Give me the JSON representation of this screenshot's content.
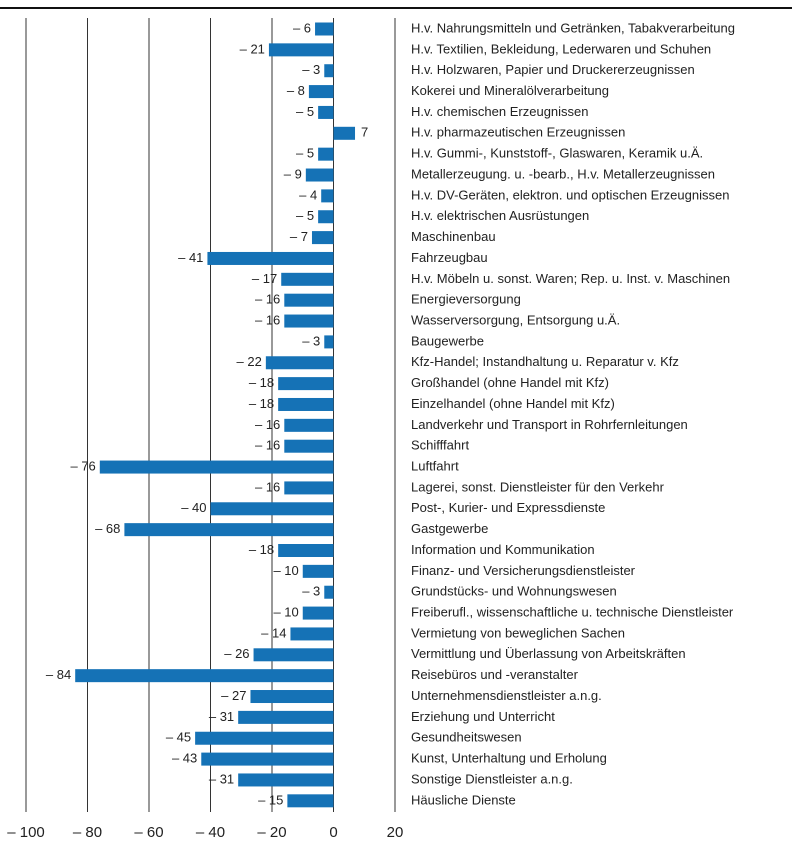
{
  "chart_data": {
    "type": "hbar",
    "categories": [
      "H.v. Nahrungsmitteln und Getränken, Tabakverarbeitung",
      "H.v. Textilien, Bekleidung, Lederwaren und Schuhen",
      "H.v. Holzwaren, Papier und Druckererzeugnissen",
      "Kokerei und Mineralölverarbeitung",
      "H.v. chemischen Erzeugnissen",
      "H.v. pharmazeutischen Erzeugnissen",
      "H.v. Gummi-, Kunststoff-, Glaswaren, Keramik u.Ä.",
      "Metallerzeugung. u. -bearb., H.v. Metallerzeugnissen",
      "H.v. DV-Geräten, elektron. und optischen Erzeugnissen",
      "H.v. elektrischen Ausrüstungen",
      "Maschinenbau",
      "Fahrzeugbau",
      "H.v. Möbeln u. sonst. Waren; Rep. u. Inst. v. Maschinen",
      "Energieversorgung",
      "Wasserversorgung, Entsorgung u.Ä.",
      "Baugewerbe",
      "Kfz-Handel; Instandhaltung u. Reparatur v. Kfz",
      "Großhandel (ohne Handel mit Kfz)",
      "Einzelhandel (ohne Handel mit Kfz)",
      "Landverkehr und Transport in Rohrfernleitungen",
      "Schifffahrt",
      "Luftfahrt",
      "Lagerei, sonst. Dienstleister für den Verkehr",
      "Post-, Kurier- und Expressdienste",
      "Gastgewerbe",
      "Information und Kommunikation",
      "Finanz- und Versicherungsdienstleister",
      "Grundstücks- und Wohnungswesen",
      "Freiberufl., wissenschaftliche u. technische Dienstleister",
      "Vermietung von beweglichen Sachen",
      "Vermittlung und Überlassung von Arbeitskräften",
      "Reisebüros und -veranstalter",
      "Unternehmensdienstleister a.n.g.",
      "Erziehung und Unterricht",
      "Gesundheitswesen",
      "Kunst, Unterhaltung und Erholung",
      "Sonstige Dienstleister a.n.g.",
      "Häusliche Dienste"
    ],
    "values": [
      -6,
      -21,
      -3,
      -8,
      -5,
      7,
      -5,
      -9,
      -4,
      -5,
      -7,
      -41,
      -17,
      -16,
      -16,
      -3,
      -22,
      -18,
      -18,
      -16,
      -16,
      -76,
      -16,
      -40,
      -68,
      -18,
      -10,
      -3,
      -10,
      -14,
      -26,
      -84,
      -27,
      -31,
      -45,
      -43,
      -31,
      -15
    ],
    "value_labels": [
      "– 6",
      "– 21",
      "– 3",
      "– 8",
      "– 5",
      "7",
      "– 5",
      "– 9",
      "– 4",
      "– 5",
      "– 7",
      "– 41",
      "– 17",
      "– 16",
      "– 16",
      "– 3",
      "– 22",
      "– 18",
      "– 18",
      "– 16",
      "– 16",
      "– 76",
      "– 16",
      "– 40",
      "– 68",
      "– 18",
      "– 10",
      "– 3",
      "– 10",
      "– 14",
      "– 26",
      "– 84",
      "– 27",
      "– 31",
      "– 45",
      "– 43",
      "– 31",
      "– 15"
    ],
    "color": "#1572b6",
    "xlim": [
      -100,
      20
    ],
    "xticks": [
      {
        "value": -100,
        "label": "– 100"
      },
      {
        "value": -80,
        "label": "– 80"
      },
      {
        "value": -60,
        "label": "– 60"
      },
      {
        "value": -40,
        "label": "– 40"
      },
      {
        "value": -20,
        "label": "– 20"
      },
      0,
      20
    ],
    "grid": true
  }
}
